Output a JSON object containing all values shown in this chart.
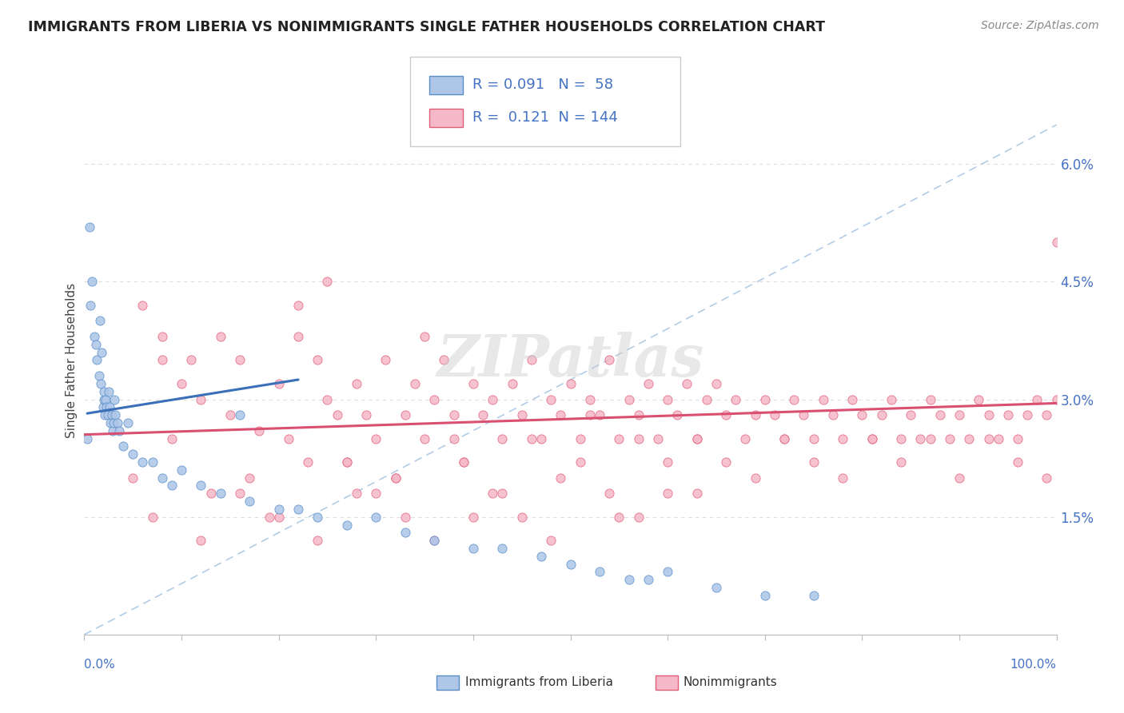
{
  "title": "IMMIGRANTS FROM LIBERIA VS NONIMMIGRANTS SINGLE FATHER HOUSEHOLDS CORRELATION CHART",
  "source": "Source: ZipAtlas.com",
  "ylabel": "Single Father Households",
  "xlim": [
    0,
    100
  ],
  "ylim": [
    0,
    7.0
  ],
  "yticks_right": [
    0,
    1.5,
    3.0,
    4.5,
    6.0
  ],
  "ytick_labels_right": [
    "",
    "1.5%",
    "3.0%",
    "4.5%",
    "6.0%"
  ],
  "blue_color": "#aec6e8",
  "blue_edge_color": "#5b8fc9",
  "pink_color": "#f5b8c8",
  "pink_edge_color": "#e0607a",
  "blue_trend_color": "#3a6fba",
  "pink_trend_color": "#d95070",
  "dash_line_color": "#a0c0e0",
  "background_color": "#ffffff",
  "watermark": "ZIPatlas",
  "blue_x": [
    0.3,
    0.5,
    0.6,
    0.8,
    1.0,
    1.2,
    1.3,
    1.5,
    1.6,
    1.7,
    1.8,
    1.9,
    2.0,
    2.0,
    2.1,
    2.2,
    2.3,
    2.4,
    2.5,
    2.6,
    2.7,
    2.8,
    2.9,
    3.0,
    3.1,
    3.2,
    3.4,
    3.6,
    4.0,
    4.5,
    5.0,
    6.0,
    7.0,
    8.0,
    9.0,
    10.0,
    12.0,
    14.0,
    16.0,
    17.0,
    20.0,
    22.0,
    24.0,
    27.0,
    30.0,
    33.0,
    36.0,
    40.0,
    43.0,
    47.0,
    50.0,
    53.0,
    56.0,
    58.0,
    60.0,
    65.0,
    70.0,
    75.0
  ],
  "blue_y": [
    2.5,
    5.2,
    4.2,
    4.5,
    3.8,
    3.7,
    3.5,
    3.3,
    4.0,
    3.2,
    3.6,
    2.9,
    3.0,
    3.1,
    2.8,
    3.0,
    2.9,
    2.8,
    3.1,
    2.9,
    2.7,
    2.8,
    2.6,
    2.7,
    3.0,
    2.8,
    2.7,
    2.6,
    2.4,
    2.7,
    2.3,
    2.2,
    2.2,
    2.0,
    1.9,
    2.1,
    1.9,
    1.8,
    2.8,
    1.7,
    1.6,
    1.6,
    1.5,
    1.4,
    1.5,
    1.3,
    1.2,
    1.1,
    1.1,
    1.0,
    0.9,
    0.8,
    0.7,
    0.7,
    0.8,
    0.6,
    0.5,
    0.5
  ],
  "pink_x": [
    6.0,
    8.0,
    10.0,
    11.0,
    12.0,
    14.0,
    15.0,
    16.0,
    18.0,
    20.0,
    21.0,
    22.0,
    23.0,
    24.0,
    25.0,
    26.0,
    27.0,
    28.0,
    29.0,
    30.0,
    31.0,
    32.0,
    33.0,
    34.0,
    35.0,
    36.0,
    37.0,
    38.0,
    39.0,
    40.0,
    41.0,
    42.0,
    43.0,
    44.0,
    45.0,
    46.0,
    47.0,
    48.0,
    49.0,
    50.0,
    51.0,
    52.0,
    53.0,
    54.0,
    55.0,
    56.0,
    57.0,
    58.0,
    59.0,
    60.0,
    61.0,
    62.0,
    63.0,
    64.0,
    65.0,
    66.0,
    67.0,
    68.0,
    69.0,
    70.0,
    71.0,
    72.0,
    73.0,
    74.0,
    75.0,
    76.0,
    77.0,
    78.0,
    79.0,
    80.0,
    81.0,
    82.0,
    83.0,
    84.0,
    85.0,
    86.0,
    87.0,
    88.0,
    89.0,
    90.0,
    91.0,
    92.0,
    93.0,
    94.0,
    95.0,
    96.0,
    97.0,
    98.0,
    99.0,
    100.0,
    5.0,
    7.0,
    9.0,
    13.0,
    17.0,
    19.0,
    22.0,
    25.0,
    28.0,
    32.0,
    35.0,
    38.0,
    40.0,
    43.0,
    46.0,
    49.0,
    52.0,
    55.0,
    57.0,
    60.0,
    63.0,
    66.0,
    69.0,
    72.0,
    75.0,
    78.0,
    81.0,
    84.0,
    87.0,
    90.0,
    93.0,
    96.0,
    99.0,
    100.0,
    8.0,
    12.0,
    16.0,
    20.0,
    24.0,
    27.0,
    30.0,
    33.0,
    36.0,
    39.0,
    42.0,
    45.0,
    48.0,
    51.0,
    54.0,
    57.0,
    60.0,
    63.0
  ],
  "pink_y": [
    4.2,
    3.8,
    3.2,
    3.5,
    3.0,
    3.8,
    2.8,
    3.5,
    2.6,
    3.2,
    2.5,
    3.8,
    2.2,
    3.5,
    3.0,
    2.8,
    2.2,
    3.2,
    2.8,
    2.5,
    3.5,
    2.0,
    2.8,
    3.2,
    2.5,
    3.0,
    3.5,
    2.8,
    2.2,
    3.2,
    2.8,
    3.0,
    2.5,
    3.2,
    2.8,
    3.5,
    2.5,
    3.0,
    2.8,
    3.2,
    2.5,
    3.0,
    2.8,
    3.5,
    2.5,
    3.0,
    2.8,
    3.2,
    2.5,
    3.0,
    2.8,
    3.2,
    2.5,
    3.0,
    3.2,
    2.8,
    3.0,
    2.5,
    2.8,
    3.0,
    2.8,
    2.5,
    3.0,
    2.8,
    2.5,
    3.0,
    2.8,
    2.5,
    3.0,
    2.8,
    2.5,
    2.8,
    3.0,
    2.5,
    2.8,
    2.5,
    3.0,
    2.8,
    2.5,
    2.8,
    2.5,
    3.0,
    2.8,
    2.5,
    2.8,
    2.5,
    2.8,
    3.0,
    2.8,
    3.0,
    2.0,
    1.5,
    2.5,
    1.8,
    2.0,
    1.5,
    4.2,
    4.5,
    1.8,
    2.0,
    3.8,
    2.5,
    1.5,
    1.8,
    2.5,
    2.0,
    2.8,
    1.5,
    2.5,
    1.8,
    2.5,
    2.2,
    2.0,
    2.5,
    2.2,
    2.0,
    2.5,
    2.2,
    2.5,
    2.0,
    2.5,
    2.2,
    2.0,
    5.0,
    3.5,
    1.2,
    1.8,
    1.5,
    1.2,
    2.2,
    1.8,
    1.5,
    1.2,
    2.2,
    1.8,
    1.5,
    1.2,
    2.2,
    1.8,
    1.5,
    2.2,
    1.8
  ]
}
